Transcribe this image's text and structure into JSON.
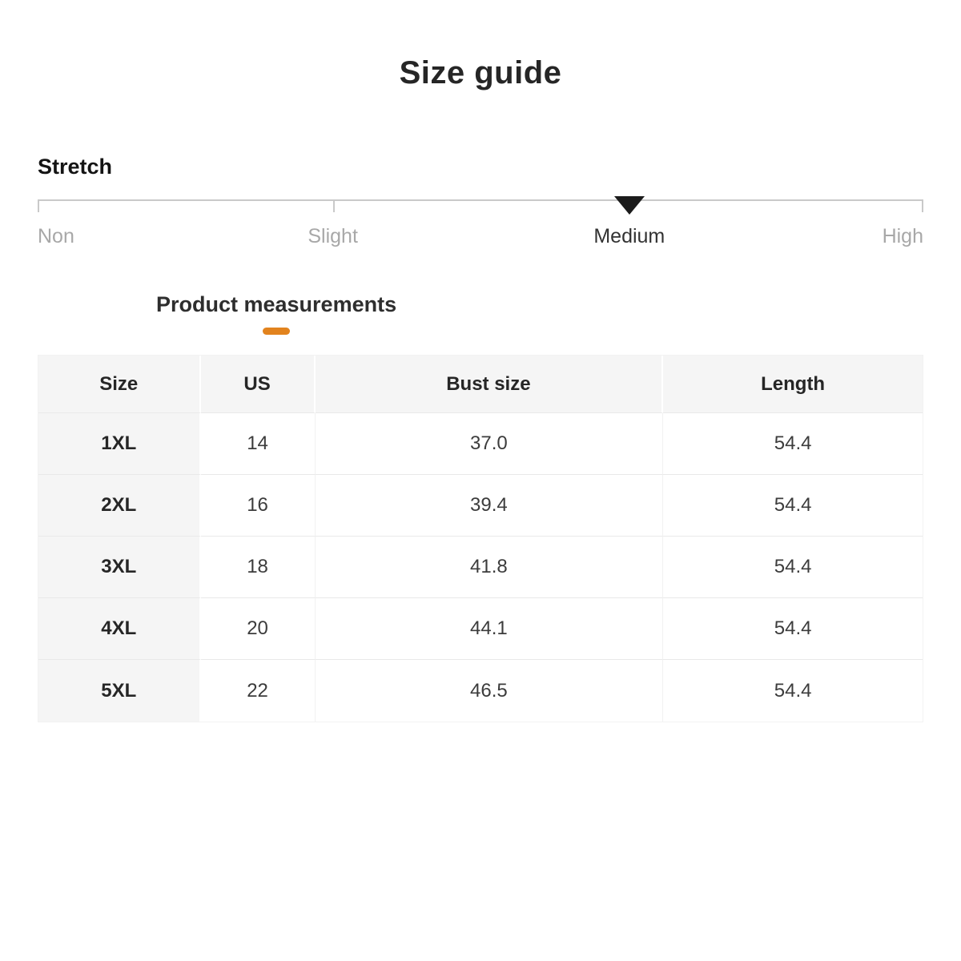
{
  "page": {
    "title": "Size guide"
  },
  "stretch": {
    "label": "Stretch",
    "options": [
      "Non",
      "Slight",
      "Medium",
      "High"
    ],
    "selected": "Medium",
    "selected_index": 2
  },
  "tabs": {
    "product_measurements": "Product measurements"
  },
  "colors": {
    "accent_orange": "#e2831e",
    "marker_black": "#1b1b1b",
    "header_bg": "#f5f5f5",
    "muted_label": "#a8a8a8"
  },
  "table": {
    "headers": [
      "Size",
      "US",
      "Bust size",
      "Length"
    ],
    "rows": [
      [
        "1XL",
        "14",
        "37.0",
        "54.4"
      ],
      [
        "2XL",
        "16",
        "39.4",
        "54.4"
      ],
      [
        "3XL",
        "18",
        "41.8",
        "54.4"
      ],
      [
        "4XL",
        "20",
        "44.1",
        "54.4"
      ],
      [
        "5XL",
        "22",
        "46.5",
        "54.4"
      ]
    ]
  }
}
